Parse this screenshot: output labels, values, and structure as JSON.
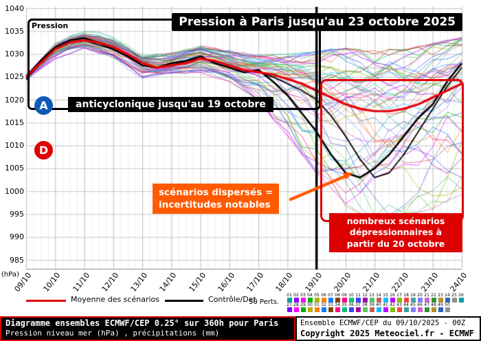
{
  "chart_data": {
    "type": "line",
    "title": "Pression à Paris jusqu'au 23 octobre 2025",
    "x_labels": [
      "09/10",
      "10/10",
      "11/10",
      "12/10",
      "13/10",
      "14/10",
      "15/10",
      "16/10",
      "17/10",
      "18/10",
      "19/10",
      "20/10",
      "21/10",
      "22/10",
      "23/10",
      "24/10"
    ],
    "y_ticks": [
      1040,
      1035,
      1030,
      1025,
      1020,
      1015,
      1010,
      1005,
      1000,
      995,
      990,
      985
    ],
    "ylim": [
      985,
      1040
    ],
    "ylabel_unit": "(hPa)",
    "grid": true,
    "inner_label": "Pression",
    "series": [
      {
        "name": "Moyenne des scénarios",
        "color": "#e8000d",
        "width": 3.2,
        "values": [
          1025,
          1028,
          1031,
          1032.5,
          1033,
          1032.5,
          1031.5,
          1030,
          1028,
          1027,
          1027.5,
          1028,
          1029,
          1028.5,
          1027.5,
          1026.5,
          1026,
          1025.5,
          1024.5,
          1023.5,
          1022,
          1020.5,
          1019,
          1018,
          1017.5,
          1017.5,
          1018,
          1019,
          1020.5,
          1022,
          1023.5
        ]
      },
      {
        "name": "Contrôle",
        "color": "#000000",
        "width": 2.6,
        "values": [
          1025,
          1028.5,
          1031.5,
          1033,
          1033.5,
          1032.5,
          1031,
          1029.5,
          1027.5,
          1027,
          1028,
          1028.5,
          1029.5,
          1028,
          1027,
          1026,
          1026.5,
          1024,
          1021,
          1017,
          1013,
          1008,
          1004,
          1003,
          1005,
          1008,
          1012,
          1016,
          1019,
          1024,
          1028
        ]
      },
      {
        "name": "Det",
        "color": "#000000",
        "width": 1.8,
        "values": [
          1024.5,
          1028,
          1031,
          1032.5,
          1033,
          1032,
          1031,
          1029.5,
          1028,
          1027,
          1027.5,
          1028.5,
          1029,
          1028.5,
          1027.5,
          1026.5,
          1026,
          1025,
          1023.5,
          1022,
          1020,
          1016.5,
          1012,
          1007,
          1003,
          1004,
          1008,
          1013,
          1018,
          1023,
          1027
        ]
      }
    ],
    "ensemble": {
      "count": 50,
      "line_width": 0.8,
      "envelope_min": [
        1024,
        1029,
        1031,
        1029,
        1025,
        1026,
        1026,
        1024,
        1020,
        1012,
        1004,
        997,
        993,
        995,
        996,
        999
      ],
      "envelope_max": [
        1025.5,
        1033,
        1035.5,
        1033.5,
        1029.5,
        1030,
        1031.5,
        1030.5,
        1029.5,
        1030,
        1030.5,
        1031,
        1030.5,
        1031,
        1032,
        1033.5
      ],
      "member_colors": [
        "#00a0a0",
        "#8000ff",
        "#ff00ff",
        "#00b000",
        "#b0b000",
        "#ff8000",
        "#0080ff",
        "#804000",
        "#ff0080",
        "#00c080",
        "#4040ff",
        "#a000a0",
        "#60c060",
        "#c06060",
        "#00c0ff",
        "#c000ff",
        "#80c000",
        "#ff4040",
        "#40a0a0",
        "#8080ff",
        "#d060d0",
        "#309030",
        "#b09030",
        "#3060c0",
        "#909090"
      ]
    }
  },
  "annotations": {
    "title": "Pression à Paris jusqu'au 23 octobre 2025",
    "inner_label": "Pression",
    "anticyclone_letter": "A",
    "depression_letter": "D",
    "anticyclone_note": "anticyclonique jusqu'au 19 octobre",
    "dispersion_note_line1": "scénarios dispersés =",
    "dispersion_note_line2": "incertitudes notables",
    "depression_note_line1": "nombreux scénarios",
    "depression_note_line2": "dépressionnaires à",
    "depression_note_line3": "partir du 20 octobre"
  },
  "legend": {
    "mean_label": "Moyenne des scénarios",
    "control_label": "Contrôle/Det",
    "perts_label": "50 Perts.",
    "member_numbers_row1": [
      "01",
      "02",
      "03",
      "04",
      "05",
      "06",
      "07",
      "08",
      "09",
      "10",
      "11",
      "12",
      "13",
      "14",
      "15",
      "16",
      "17",
      "18",
      "19",
      "20",
      "21",
      "22",
      "23",
      "24",
      "25",
      "26"
    ],
    "member_numbers_row2": [
      "27",
      "28",
      "29",
      "30",
      "31",
      "32",
      "33",
      "34",
      "35",
      "36",
      "37",
      "38",
      "39",
      "40",
      "41",
      "42",
      "43",
      "44",
      "45",
      "46",
      "47",
      "48",
      "49",
      "50"
    ]
  },
  "footer": {
    "left_line1": "Diagramme ensembles ECMWF/CEP 0.25° sur 360h pour Paris",
    "left_line2": "Pression niveau mer (hPa) , précipitations (mm)",
    "right_line1": "Ensemble ECMWF/CEP du 09/10/2025 - 00Z",
    "right_line2": "Copyright 2025 Meteociel.fr - ECMWF"
  },
  "colors": {
    "mean_line": "#e8000d",
    "control_line": "#000000",
    "highlight_red": "#dd0000",
    "accent_orange": "#ff5a00",
    "anticyclone_blue": "#0d5ab5",
    "grid_major": "#bbbbbb",
    "grid_minor": "#ededed"
  }
}
